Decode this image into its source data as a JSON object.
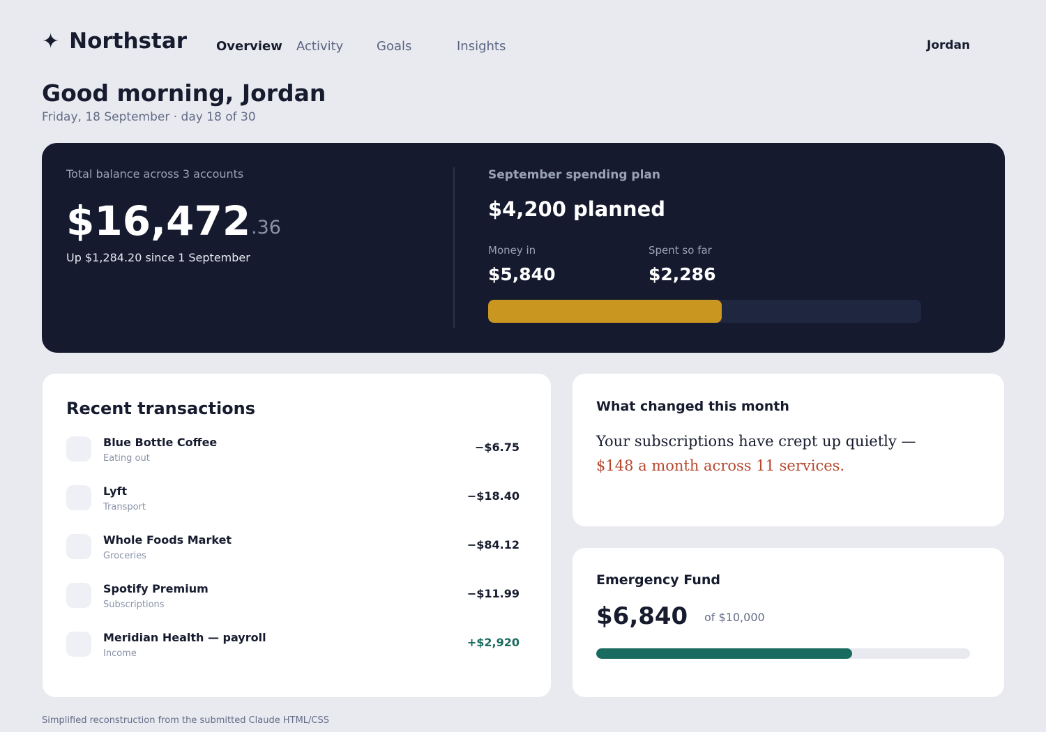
{
  "header": {
    "logo_icon": "✦",
    "logo_name": "Northstar",
    "nav": [
      {
        "label": "Overview",
        "active": true
      },
      {
        "label": "Activity",
        "active": false
      },
      {
        "label": "Goals",
        "active": false
      },
      {
        "label": "Insights",
        "active": false
      }
    ],
    "user": "Jordan"
  },
  "greeting": {
    "title": "Good morning, Jordan",
    "date": "Friday, 18 September · day 18 of 30"
  },
  "balance": {
    "label": "Total balance across 3 accounts",
    "whole": "$16,472",
    "cents": ".36",
    "change": "Up $1,284.20 since 1 September"
  },
  "plan": {
    "title": "September spending plan",
    "amount": "$4,200 planned",
    "money_in_label": "Money in",
    "money_in_value": "$5,840",
    "spent_label": "Spent so far",
    "spent_value": "$2,286",
    "progress": 0.54,
    "fill_color": "#c9961f"
  },
  "transactions": {
    "title": "Recent transactions",
    "items": [
      {
        "name": "Blue Bottle Coffee",
        "category": "Eating out",
        "amount": "−$6.75",
        "positive": false
      },
      {
        "name": "Lyft",
        "category": "Transport",
        "amount": "−$18.40",
        "positive": false
      },
      {
        "name": "Whole Foods Market",
        "category": "Groceries",
        "amount": "−$84.12",
        "positive": false
      },
      {
        "name": "Spotify Premium",
        "category": "Subscriptions",
        "amount": "−$11.99",
        "positive": false
      },
      {
        "name": "Meridian Health — payroll",
        "category": "Income",
        "amount": "+$2,920",
        "positive": true
      }
    ]
  },
  "insight": {
    "title": "What changed this month",
    "text": "Your subscriptions have crept up quietly —",
    "highlight": "$148 a month across 11 services.",
    "highlight_color": "#b5472d"
  },
  "emergency_fund": {
    "title": "Emergency Fund",
    "value": "$6,840",
    "of": "of $10,000",
    "progress": 0.684,
    "fill_color": "#1a6b5f"
  },
  "footer": "Simplified reconstruction from the submitted Claude HTML/CSS"
}
